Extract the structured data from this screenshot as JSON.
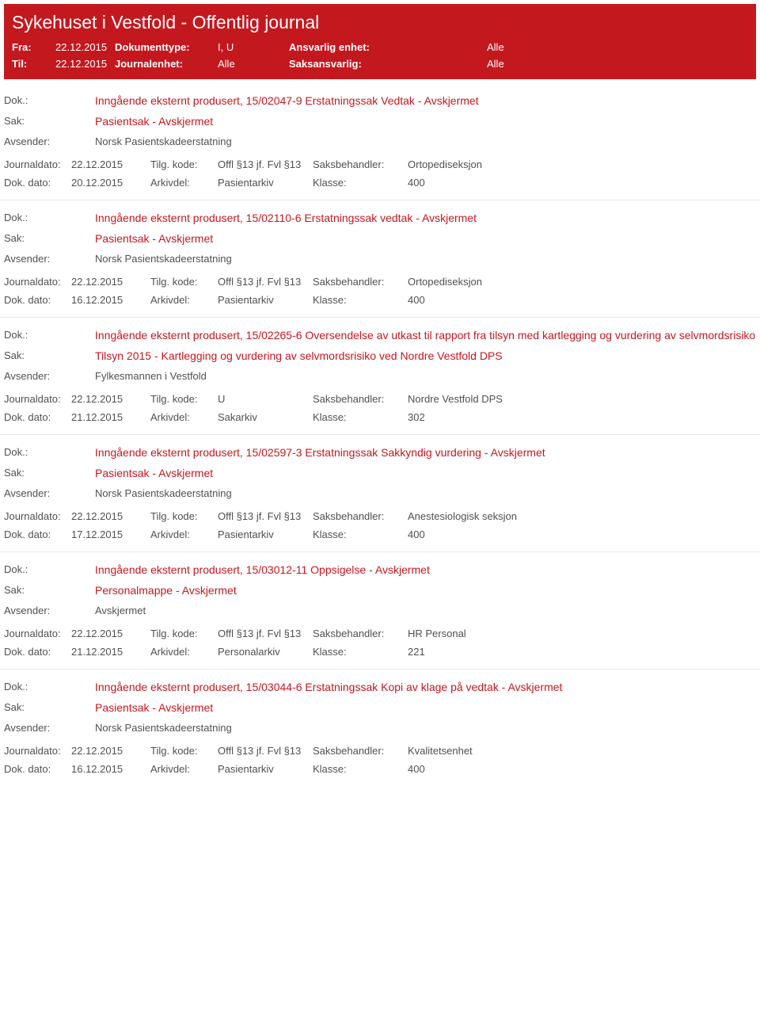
{
  "banner": {
    "title": "Sykehuset i Vestfold - Offentlig journal",
    "fra_label": "Fra:",
    "fra_value": "22.12.2015",
    "til_label": "Til:",
    "til_value": "22.12.2015",
    "doktype_label": "Dokumenttype:",
    "doktype_value": "I, U",
    "journalenhet_label": "Journalenhet:",
    "journalenhet_value": "Alle",
    "ansvarlig_label": "Ansvarlig enhet:",
    "ansvarlig_value": "Alle",
    "saksansvarlig_label": "Saksansvarlig:",
    "saksansvarlig_value": "Alle"
  },
  "labels": {
    "dok": "Dok.:",
    "sak": "Sak:",
    "avsender": "Avsender:",
    "journaldato": "Journaldato:",
    "dokdato": "Dok. dato:",
    "tilgkode": "Tilg. kode:",
    "arkivdel": "Arkivdel:",
    "saksbehandler": "Saksbehandler:",
    "klasse": "Klasse:"
  },
  "entries": [
    {
      "dok": "Inngående eksternt produsert, 15/02047-9 Erstatningssak Vedtak - Avskjermet",
      "sak": "Pasientsak - Avskjermet",
      "avsender": "Norsk Pasientskadeerstatning",
      "journaldato": "22.12.2015",
      "dokdato": "20.12.2015",
      "tilgkode": "Offl §13 jf. Fvl §13",
      "arkivdel": "Pasientarkiv",
      "saksbehandler": "Ortopediseksjon",
      "klasse": "400"
    },
    {
      "dok": "Inngående eksternt produsert, 15/02110-6 Erstatningssak vedtak - Avskjermet",
      "sak": "Pasientsak - Avskjermet",
      "avsender": "Norsk Pasientskadeerstatning",
      "journaldato": "22.12.2015",
      "dokdato": "16.12.2015",
      "tilgkode": "Offl §13 jf. Fvl §13",
      "arkivdel": "Pasientarkiv",
      "saksbehandler": "Ortopediseksjon",
      "klasse": "400"
    },
    {
      "dok": "Inngående eksternt produsert, 15/02265-6 Oversendelse av utkast til rapport fra tilsyn med kartlegging og vurdering av selvmordsrisiko",
      "sak": "Tilsyn 2015 - Kartlegging og vurdering av selvmordsrisiko ved Nordre Vestfold DPS",
      "avsender": "Fylkesmannen i Vestfold",
      "journaldato": "22.12.2015",
      "dokdato": "21.12.2015",
      "tilgkode": "U",
      "arkivdel": "Sakarkiv",
      "saksbehandler": "Nordre Vestfold DPS",
      "klasse": "302"
    },
    {
      "dok": "Inngående eksternt produsert, 15/02597-3 Erstatningssak Sakkyndig vurdering - Avskjermet",
      "sak": "Pasientsak - Avskjermet",
      "avsender": "Norsk Pasientskadeerstatning",
      "journaldato": "22.12.2015",
      "dokdato": "17.12.2015",
      "tilgkode": "Offl §13 jf. Fvl §13",
      "arkivdel": "Pasientarkiv",
      "saksbehandler": "Anestesiologisk seksjon",
      "klasse": "400"
    },
    {
      "dok": "Inngående eksternt produsert, 15/03012-11 Oppsigelse - Avskjermet",
      "sak": "Personalmappe - Avskjermet",
      "avsender": "Avskjermet",
      "journaldato": "22.12.2015",
      "dokdato": "21.12.2015",
      "tilgkode": "Offl §13 jf. Fvl §13",
      "arkivdel": "Personalarkiv",
      "saksbehandler": "HR Personal",
      "klasse": "221"
    },
    {
      "dok": "Inngående eksternt produsert, 15/03044-6 Erstatningssak Kopi av klage på vedtak - Avskjermet",
      "sak": "Pasientsak - Avskjermet",
      "avsender": "Norsk Pasientskadeerstatning",
      "journaldato": "22.12.2015",
      "dokdato": "16.12.2015",
      "tilgkode": "Offl §13 jf. Fvl §13",
      "arkivdel": "Pasientarkiv",
      "saksbehandler": "Kvalitetsenhet",
      "klasse": "400"
    }
  ]
}
